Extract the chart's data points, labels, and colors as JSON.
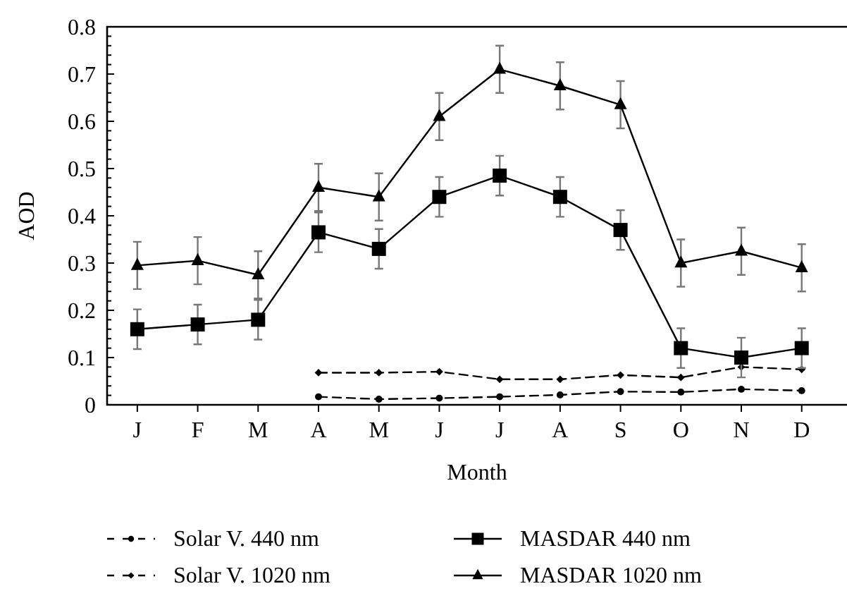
{
  "chart_data": {
    "type": "line",
    "xlabel": "Month",
    "ylabel": "AOD",
    "categories": [
      "J",
      "F",
      "M",
      "A",
      "M",
      "J",
      "J",
      "A",
      "S",
      "O",
      "N",
      "D"
    ],
    "ylim": [
      0,
      0.8
    ],
    "yticks": [
      0,
      0.1,
      0.2,
      0.3,
      0.4,
      0.5,
      0.6,
      0.7,
      0.8
    ],
    "legend": "bottom",
    "grid": false,
    "series": [
      {
        "name": "Solar V. 440 nm",
        "color": "#000000",
        "marker": "circle",
        "line_style": "dashed",
        "values": [
          null,
          null,
          null,
          0.017,
          0.012,
          0.014,
          0.017,
          0.021,
          0.028,
          0.027,
          0.033,
          0.03
        ]
      },
      {
        "name": "Solar V. 1020 nm",
        "color": "#000000",
        "marker": "diamond",
        "line_style": "dashed",
        "values": [
          null,
          null,
          null,
          0.068,
          0.068,
          0.07,
          0.054,
          0.054,
          0.063,
          0.058,
          0.08,
          0.075
        ]
      },
      {
        "name": "MASDAR 440 nm",
        "color": "#000000",
        "marker": "square",
        "line_style": "solid",
        "values": [
          0.16,
          0.17,
          0.18,
          0.365,
          0.33,
          0.44,
          0.485,
          0.44,
          0.37,
          0.12,
          0.1,
          0.12
        ],
        "errors": [
          0.042,
          0.042,
          0.042,
          0.042,
          0.042,
          0.042,
          0.042,
          0.042,
          0.042,
          0.042,
          0.042,
          0.042
        ]
      },
      {
        "name": "MASDAR 1020 nm",
        "color": "#000000",
        "marker": "triangle",
        "line_style": "solid",
        "values": [
          0.295,
          0.305,
          0.275,
          0.46,
          0.44,
          0.61,
          0.71,
          0.675,
          0.635,
          0.3,
          0.325,
          0.29
        ],
        "errors": [
          0.05,
          0.05,
          0.05,
          0.05,
          0.05,
          0.05,
          0.05,
          0.05,
          0.05,
          0.05,
          0.05,
          0.05
        ]
      }
    ]
  }
}
